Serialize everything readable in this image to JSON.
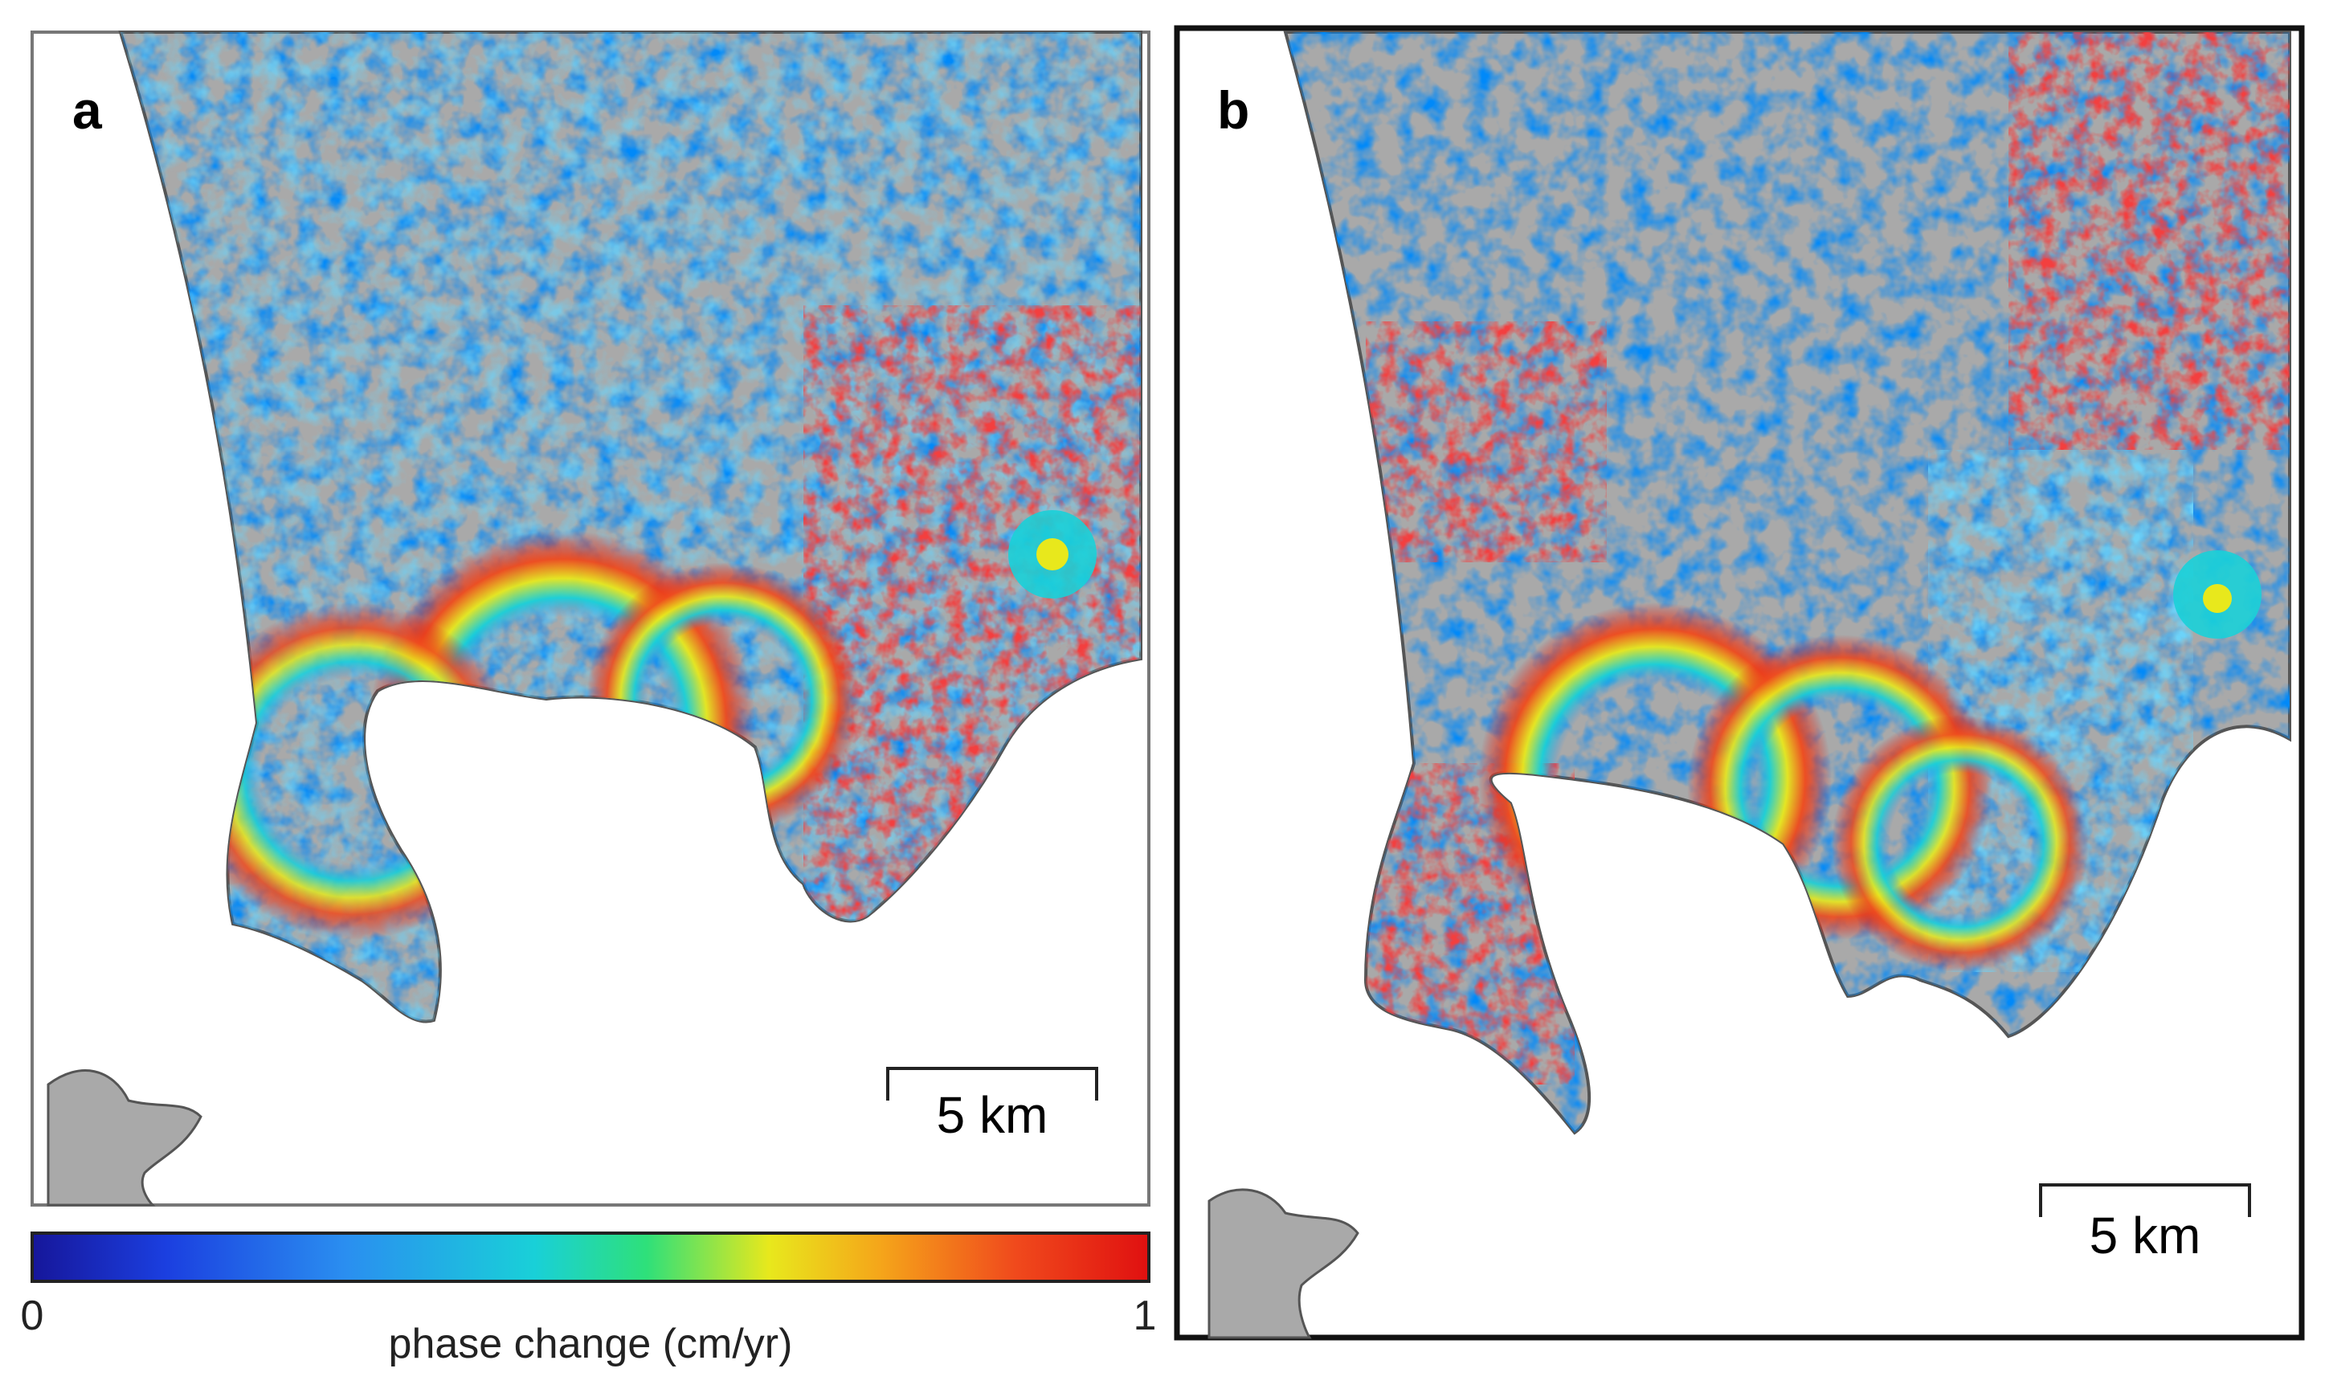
{
  "figure": {
    "panels": [
      {
        "id": "a",
        "label": "a",
        "scalebar_label": "5 km"
      },
      {
        "id": "b",
        "label": "b",
        "scalebar_label": "5 km"
      }
    ],
    "colorbar": {
      "min_label": "0",
      "max_label": "1",
      "title": "phase change (cm/yr)",
      "colors": [
        "#1a1aa8",
        "#1b4fe8",
        "#2fa8f0",
        "#19d6d0",
        "#2ee07a",
        "#e8e81c",
        "#f5a51a",
        "#f04a1c",
        "#e01010"
      ]
    },
    "colors": {
      "land": "#a9a9a9",
      "sea": "#ffffff",
      "coastline": "#555555",
      "frame": "#222222"
    }
  }
}
